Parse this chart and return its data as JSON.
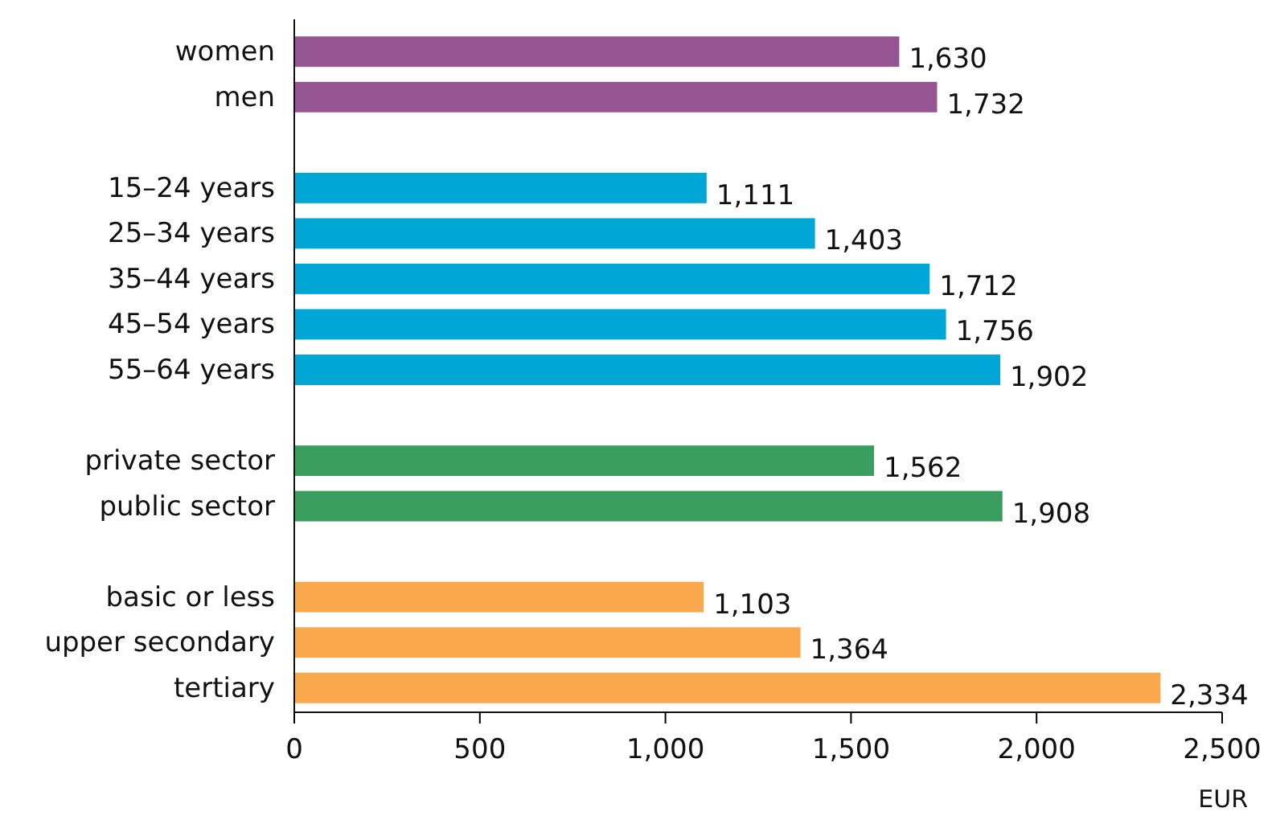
{
  "chart_data": {
    "type": "bar",
    "orientation": "horizontal",
    "xlabel": "EUR",
    "categories": [
      "women",
      "men",
      null,
      "15–24 years",
      "25–34 years",
      "35–44 years",
      "45–54 years",
      "55–64 years",
      null,
      "private sector",
      "public sector",
      null,
      "basic or less",
      "upper secondary",
      "tertiary"
    ],
    "values": [
      1630,
      1732,
      null,
      1111,
      1403,
      1712,
      1756,
      1902,
      null,
      1562,
      1908,
      null,
      1103,
      1364,
      2334
    ],
    "value_labels": [
      "1,630",
      "1,732",
      null,
      "1,111",
      "1,403",
      "1,712",
      "1,756",
      "1,902",
      null,
      "1,562",
      "1,908",
      null,
      "1,103",
      "1,364",
      "2,334"
    ],
    "colors": [
      "#955592",
      "#955592",
      null,
      "#00a6d6",
      "#00a6d6",
      "#00a6d6",
      "#00a6d6",
      "#00a6d6",
      null,
      "#3a9f5e",
      "#3a9f5e",
      null,
      "#f9a94b",
      "#f9a94b",
      "#f9a94b"
    ],
    "xlim": [
      0,
      2500
    ],
    "xticks": [
      0,
      500,
      {
        "value": 1000,
        "label": "1,000"
      },
      {
        "value": 1500,
        "label": "1,500"
      },
      {
        "value": 2000,
        "label": "2,000"
      },
      {
        "value": 2500,
        "label": "2,500"
      }
    ],
    "tick_labels": true
  }
}
